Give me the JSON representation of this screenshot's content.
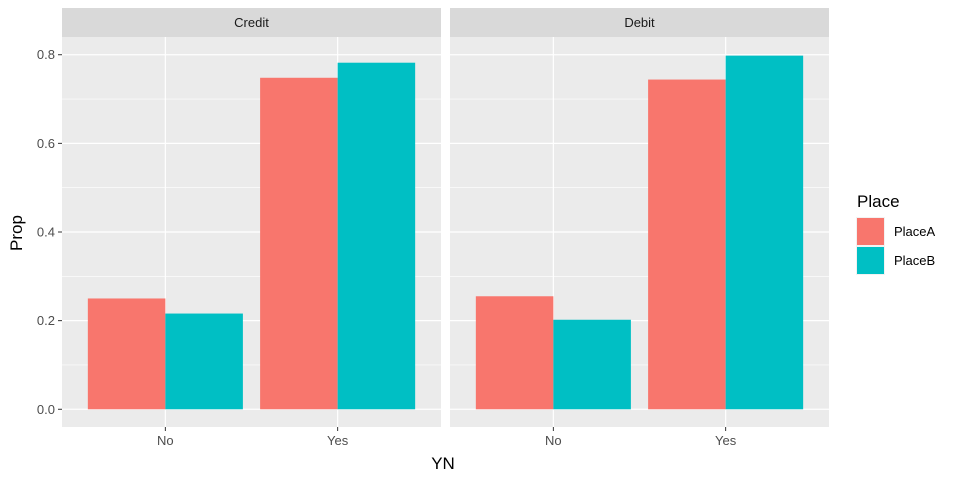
{
  "chart_data": {
    "type": "bar",
    "facets": [
      "Credit",
      "Debit"
    ],
    "categories": [
      "No",
      "Yes"
    ],
    "series": [
      {
        "name": "PlaceA",
        "color": "#F8766D",
        "values": {
          "Credit": [
            0.25,
            0.748
          ],
          "Debit": [
            0.255,
            0.744
          ]
        }
      },
      {
        "name": "PlaceB",
        "color": "#00BFC4",
        "values": {
          "Credit": [
            0.216,
            0.782
          ],
          "Debit": [
            0.202,
            0.798
          ]
        }
      }
    ],
    "xlabel": "YN",
    "ylabel": "Prop",
    "ylim": [
      -0.04,
      0.84
    ],
    "yticks": [
      0.0,
      0.2,
      0.4,
      0.6,
      0.8
    ],
    "ytick_labels": [
      "0.0",
      "0.2",
      "0.4",
      "0.6",
      "0.8"
    ],
    "legend": {
      "title": "Place",
      "position": "right"
    },
    "grid": true
  }
}
